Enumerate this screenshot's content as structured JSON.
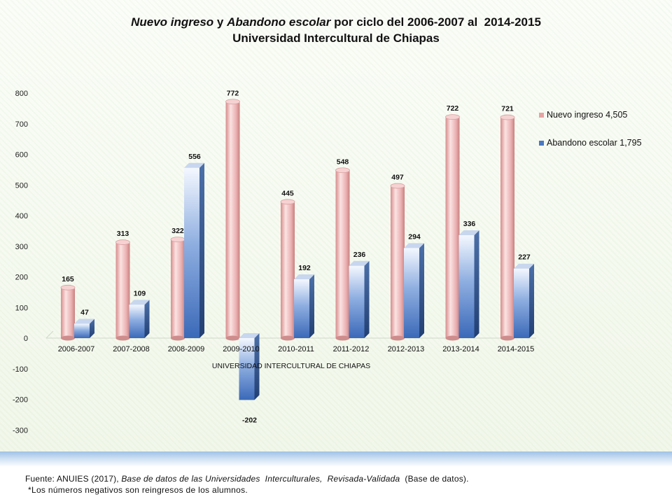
{
  "chart_data": {
    "type": "bar",
    "title": {
      "italic_1": "Nuevo ingreso",
      "sep_1": " y ",
      "italic_2": "Abandono escolar",
      "rest": " por ciclo del 2006-2007 al  2014-2015",
      "line2": "Universidad Intercultural de Chiapas"
    },
    "xlabel": "UNIVERSIDAD INTERCULTURAL DE CHIAPAS",
    "ylabel": "",
    "ylim": [
      -300,
      800
    ],
    "yticks": [
      -300,
      -200,
      -100,
      0,
      100,
      200,
      300,
      400,
      500,
      600,
      700,
      800
    ],
    "categories": [
      "2006-2007",
      "2007-2008",
      "2008-2009",
      "2009-2010",
      "2010-2011",
      "2011-2012",
      "2012-2013",
      "2013-2014",
      "2014-2015"
    ],
    "series": [
      {
        "name": "Nuevo ingreso  4,505",
        "color": "#e6a3a3",
        "shape": "cylinder",
        "values": [
          165,
          313,
          322,
          772,
          445,
          548,
          497,
          722,
          721
        ]
      },
      {
        "name": "Abandono escolar  1,795",
        "color": "#4a78c0",
        "shape": "box",
        "values": [
          47,
          109,
          556,
          -202,
          192,
          236,
          294,
          336,
          227
        ]
      }
    ],
    "legend": "right",
    "grid": false
  },
  "footer": {
    "source_prefix": "Fuente: ANUIES (2017), ",
    "source_italic": "Base de datos de las Universidades  Interculturales,  Revisada-Validada",
    "source_suffix": "  (Base de datos).",
    "note": "*Los números  negativos  son reingresos  de los alumnos."
  }
}
